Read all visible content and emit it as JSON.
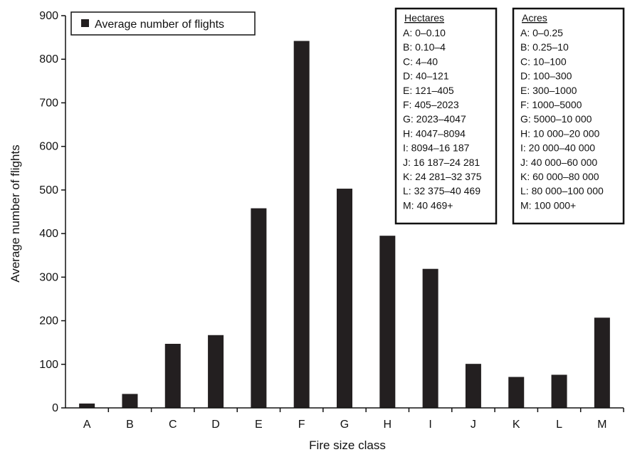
{
  "chart_data": {
    "type": "bar",
    "categories": [
      "A",
      "B",
      "C",
      "D",
      "E",
      "F",
      "G",
      "H",
      "I",
      "J",
      "K",
      "L",
      "M"
    ],
    "series": [
      {
        "name": "Average number of flights",
        "values": [
          10,
          32,
          147,
          167,
          458,
          842,
          503,
          395,
          319,
          101,
          71,
          76,
          207
        ],
        "color": "#231f20"
      }
    ],
    "xlabel": "Fire size class",
    "ylabel": "Average number of flights",
    "ylim": [
      0,
      900
    ],
    "yticks": [
      0,
      100,
      200,
      300,
      400,
      500,
      600,
      700,
      800,
      900
    ],
    "grid": false,
    "legend_position": "top-left"
  },
  "hectares_box": {
    "title": "Hectares",
    "rows": [
      "A: 0–0.10",
      "B: 0.10–4",
      "C: 4–40",
      "D: 40–121",
      "E: 121–405",
      "F: 405–2023",
      "G: 2023–4047",
      "H: 4047–8094",
      "I: 8094–16 187",
      "J: 16 187–24 281",
      "K: 24 281–32 375",
      "L: 32 375–40 469",
      "M: 40 469+"
    ]
  },
  "acres_box": {
    "title": "Acres",
    "rows": [
      "A: 0–0.25",
      "B: 0.25–10",
      "C: 10–100",
      "D: 100–300",
      "E: 300–1000",
      "F: 1000–5000",
      "G: 5000–10 000",
      "H: 10 000–20 000",
      "I: 20 000–40 000",
      "J: 40 000–60 000",
      "K: 60 000–80 000",
      "L: 80 000–100 000",
      "M: 100 000+"
    ]
  }
}
